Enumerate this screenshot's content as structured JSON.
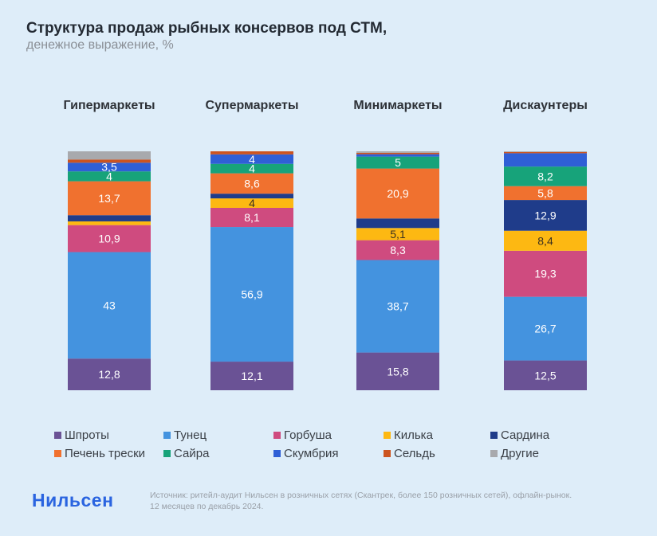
{
  "header": {
    "title": "Структура продаж рыбных консервов под СТМ,",
    "subtitle": "денежное выражение, %"
  },
  "footer": {
    "logo": "Нильсен",
    "source_line1": "Источник: ритейл-аудит Нильсен в розничных сетях (Скантрек, более 150 розничных сетей), офлайн-рынок.",
    "source_line2": "12 месяцев по декабрь 2024."
  },
  "chart_data": {
    "type": "bar",
    "stacked": true,
    "title": "Структура продаж рыбных консервов под СТМ, денежное выражение, %",
    "categories": [
      "Гипермаркеты",
      "Супермаркеты",
      "Минимаркеты",
      "Дискаунтеры"
    ],
    "ylim": [
      0,
      100
    ],
    "legend_position": "bottom",
    "series": [
      {
        "name": "Шпроты",
        "color": "#6a5295",
        "values": [
          12.8,
          12.1,
          15.8,
          12.5
        ],
        "labels": [
          "12,8",
          "12,1",
          "15,8",
          "12,5"
        ]
      },
      {
        "name": "Тунец",
        "color": "#4493df",
        "values": [
          43,
          56.9,
          38.7,
          26.7
        ],
        "labels": [
          "43",
          "56,9",
          "38,7",
          "26,7"
        ]
      },
      {
        "name": "Горбуша",
        "color": "#cf4b7f",
        "values": [
          10.9,
          8.1,
          8.3,
          19.3
        ],
        "labels": [
          "10,9",
          "8,1",
          "8,3",
          "19,3"
        ]
      },
      {
        "name": "Килька",
        "color": "#fdb812",
        "values": [
          1.5,
          4,
          5.1,
          8.4
        ],
        "labels": [
          "",
          "4",
          "5,1",
          "8,4"
        ]
      },
      {
        "name": "Сардина",
        "color": "#1f3c8a",
        "values": [
          2.5,
          2,
          4,
          12.9
        ],
        "labels": [
          "",
          "",
          "",
          "12,9"
        ]
      },
      {
        "name": "Печень трески",
        "color": "#f0712f",
        "values": [
          13.7,
          8.6,
          20.9,
          5.8
        ],
        "labels": [
          "13,7",
          "8,6",
          "20,9",
          "5,8"
        ]
      },
      {
        "name": "Сайра",
        "color": "#17a37a",
        "values": [
          4,
          4,
          5,
          8.2
        ],
        "labels": [
          "4",
          "4",
          "5",
          "8,2"
        ]
      },
      {
        "name": "Скумбрия",
        "color": "#2f5fd6",
        "values": [
          3.5,
          4,
          1,
          5.6
        ],
        "labels": [
          "3,5",
          "4",
          "",
          ""
        ]
      },
      {
        "name": "Сельдь",
        "color": "#cc5420",
        "values": [
          1.3,
          1.3,
          0.6,
          0.5
        ],
        "labels": [
          "",
          "",
          "",
          ""
        ]
      },
      {
        "name": "Другие",
        "color": "#a8a9ad",
        "values": [
          3.3,
          0,
          0.6,
          0.3
        ],
        "labels": [
          "",
          "",
          "",
          ""
        ]
      }
    ]
  }
}
